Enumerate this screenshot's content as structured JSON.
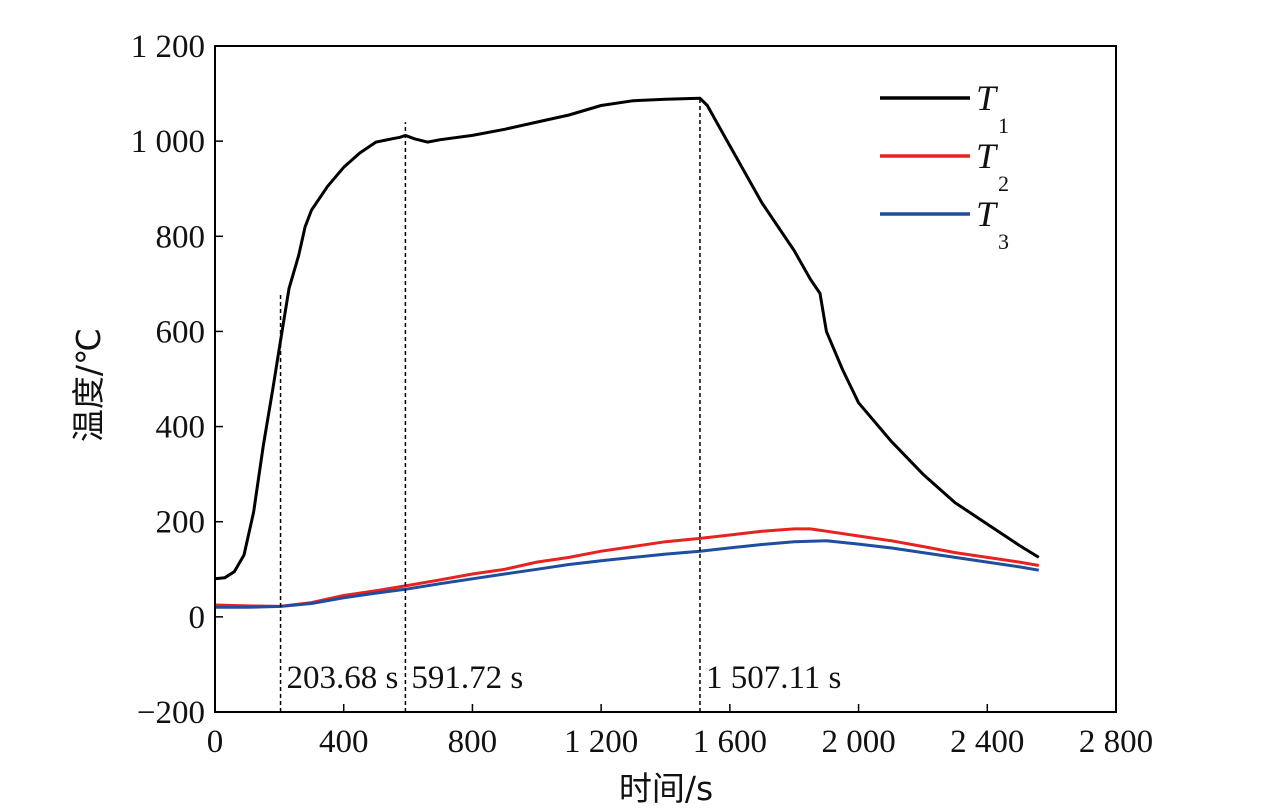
{
  "chart_data": {
    "type": "line",
    "xlabel": "时间/s",
    "ylabel": "温度/℃",
    "xlim": [
      0,
      2800
    ],
    "ylim": [
      -200,
      1200
    ],
    "x_ticks": [
      0,
      400,
      800,
      1200,
      1600,
      2000,
      2400,
      2800
    ],
    "x_tick_labels": [
      "0",
      "400",
      "800",
      "1 200",
      "1 600",
      "2 000",
      "2 400",
      "2 800"
    ],
    "y_ticks": [
      -200,
      0,
      200,
      400,
      600,
      800,
      1000,
      1200
    ],
    "y_tick_labels": [
      "−200",
      "0",
      "200",
      "400",
      "600",
      "800",
      "1 000",
      "1 200"
    ],
    "grid": false,
    "legend_position": "top-right",
    "series": [
      {
        "name": "T",
        "subscript": "1",
        "color": "#000000",
        "x": [
          0,
          30,
          60,
          90,
          120,
          150,
          180,
          203.68,
          230,
          260,
          280,
          300,
          350,
          400,
          450,
          500,
          550,
          575,
          591.72,
          620,
          660,
          700,
          800,
          900,
          1000,
          1100,
          1200,
          1300,
          1400,
          1507.11,
          1530,
          1600,
          1700,
          1800,
          1850,
          1880,
          1900,
          1950,
          2000,
          2100,
          2200,
          2300,
          2400,
          2500,
          2560
        ],
        "y": [
          80,
          82,
          95,
          130,
          220,
          360,
          480,
          580,
          690,
          760,
          820,
          855,
          905,
          945,
          975,
          998,
          1005,
          1008,
          1012,
          1005,
          998,
          1003,
          1012,
          1025,
          1040,
          1055,
          1075,
          1085,
          1088,
          1090,
          1075,
          990,
          870,
          770,
          710,
          680,
          600,
          520,
          450,
          370,
          300,
          240,
          195,
          150,
          125
        ]
      },
      {
        "name": "T",
        "subscript": "2",
        "color": "#e8221e",
        "x": [
          0,
          100,
          203.68,
          300,
          400,
          500,
          591.72,
          700,
          800,
          900,
          1000,
          1100,
          1200,
          1300,
          1400,
          1507.11,
          1600,
          1700,
          1800,
          1850,
          1900,
          2000,
          2100,
          2200,
          2300,
          2400,
          2500,
          2560
        ],
        "y": [
          25,
          23,
          22,
          30,
          45,
          55,
          65,
          78,
          90,
          100,
          115,
          125,
          138,
          148,
          158,
          165,
          172,
          180,
          185,
          185,
          180,
          170,
          160,
          148,
          135,
          125,
          115,
          108
        ]
      },
      {
        "name": "T",
        "subscript": "3",
        "color": "#1f4ea0",
        "x": [
          0,
          100,
          203.68,
          300,
          400,
          500,
          591.72,
          700,
          800,
          900,
          1000,
          1100,
          1200,
          1300,
          1400,
          1507.11,
          1600,
          1700,
          1800,
          1900,
          2000,
          2100,
          2200,
          2300,
          2400,
          2500,
          2560
        ],
        "y": [
          20,
          20,
          22,
          28,
          40,
          50,
          58,
          70,
          80,
          90,
          100,
          110,
          118,
          125,
          132,
          138,
          145,
          152,
          158,
          160,
          153,
          145,
          135,
          125,
          115,
          105,
          98
        ]
      }
    ],
    "vlines": [
      {
        "x": 203.68,
        "y_top": 680,
        "label": "203.68 s"
      },
      {
        "x": 591.72,
        "y_top": 1040,
        "label": "591.72 s"
      },
      {
        "x": 1507.11,
        "y_top": 1090,
        "label": "1 507.11 s"
      }
    ]
  }
}
